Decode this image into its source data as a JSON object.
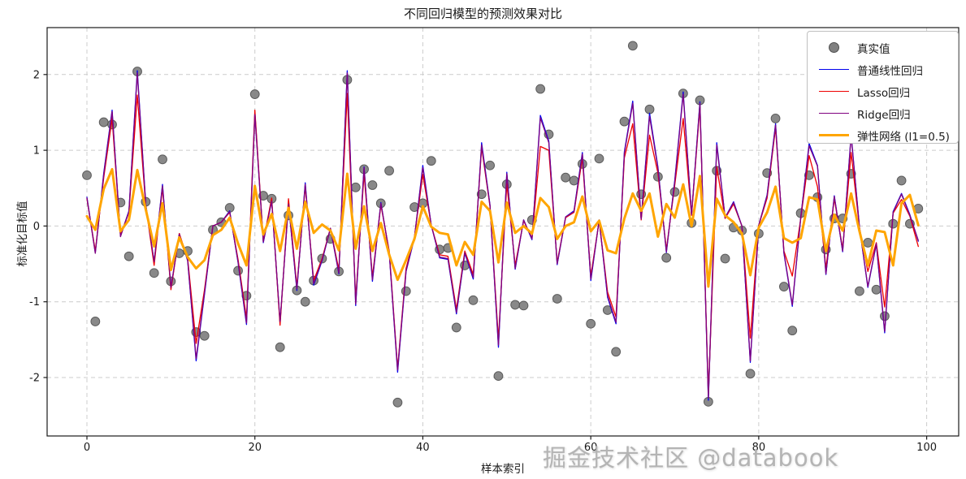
{
  "title": "不同回归模型的预测效果对比",
  "watermark": "掘金技术社区 @databook",
  "x_axis": {
    "label": "样本索引",
    "ticks": [
      0,
      20,
      40,
      60,
      80,
      100
    ]
  },
  "y_axis": {
    "label": "标准化目标值",
    "ticks": [
      -2,
      -1,
      0,
      1,
      2
    ]
  },
  "colors": {
    "true_dots": "#808080",
    "dot_edge": "#4f4f4f",
    "linear": "#0000ee",
    "lasso": "#ee0000",
    "ridge": "#800080",
    "elastic": "#ffa500",
    "grid": "#cccccc",
    "spine": "#1a1a1a",
    "legend_border": "#bfbfbf",
    "watermark_gray": "#b4b4b4"
  },
  "chart_data": {
    "type": "line",
    "title": "不同回归模型的预测效果对比",
    "xlabel": "样本索引",
    "ylabel": "标准化目标值",
    "x_description": "sample index 0..99 (one point per index)",
    "xlim": [
      -5,
      104
    ],
    "ylim": [
      -2.78,
      2.62
    ],
    "x_ticks": [
      0,
      20,
      40,
      60,
      80,
      100
    ],
    "y_ticks": [
      -2,
      -1,
      0,
      1,
      2
    ],
    "grid": true,
    "grid_style": "dashed",
    "legend_position": "upper right",
    "scatter_series": {
      "name": "真实值",
      "marker": "circle",
      "color": "#808080",
      "values": [
        0.67,
        -1.26,
        1.37,
        1.34,
        0.31,
        -0.4,
        2.04,
        0.32,
        -0.62,
        0.88,
        -0.73,
        -0.36,
        -0.33,
        -1.4,
        -1.45,
        -0.05,
        0.05,
        0.24,
        -0.59,
        -0.92,
        1.74,
        0.4,
        0.36,
        -1.6,
        0.14,
        -0.85,
        -1.0,
        -0.72,
        -0.43,
        -0.17,
        -0.6,
        1.93,
        0.51,
        0.75,
        0.54,
        0.3,
        0.73,
        -2.33,
        -0.86,
        0.25,
        0.3,
        0.86,
        -0.31,
        -0.29,
        -1.34,
        -0.52,
        -0.98,
        0.42,
        0.8,
        -1.98,
        0.55,
        -1.04,
        -1.05,
        0.08,
        1.81,
        1.21,
        -0.96,
        0.64,
        0.6,
        0.82,
        -1.29,
        0.89,
        -1.11,
        -1.66,
        1.38,
        2.38,
        0.42,
        1.54,
        0.65,
        -0.42,
        0.45,
        1.75,
        0.04,
        1.66,
        -2.32,
        0.73,
        -0.43,
        -0.02,
        -0.06,
        -1.95,
        -0.1,
        0.7,
        1.42,
        -0.8,
        -1.38,
        0.17,
        0.67,
        0.38,
        -0.31,
        0.1,
        0.1,
        0.69,
        -0.86,
        -0.22,
        -0.84,
        -1.19,
        0.03,
        0.6,
        0.03,
        0.23
      ]
    },
    "series": [
      {
        "name": "普通线性回归",
        "color": "#0000ee",
        "width": 1.3,
        "values": [
          0.38,
          -0.35,
          0.7,
          1.53,
          -0.13,
          0.2,
          2.05,
          0.29,
          -0.48,
          0.55,
          -0.82,
          -0.1,
          -0.46,
          -1.78,
          -0.9,
          0.0,
          0.05,
          0.2,
          -0.48,
          -1.3,
          1.5,
          -0.22,
          0.34,
          -1.28,
          0.3,
          -0.85,
          0.57,
          -0.78,
          -0.46,
          -0.03,
          -0.63,
          2.05,
          -1.05,
          0.78,
          -0.73,
          0.31,
          -0.36,
          -1.93,
          -0.6,
          -0.16,
          0.8,
          0.01,
          -0.42,
          -0.44,
          -1.16,
          -0.36,
          -0.7,
          1.1,
          0.28,
          -1.6,
          0.71,
          -0.57,
          0.08,
          -0.18,
          1.46,
          1.12,
          -0.51,
          0.12,
          0.2,
          0.97,
          -0.72,
          0.08,
          -0.94,
          -1.29,
          0.98,
          1.65,
          0.09,
          1.49,
          0.78,
          -0.35,
          0.6,
          1.77,
          0.15,
          1.64,
          -2.3,
          1.1,
          0.11,
          0.32,
          0.0,
          -1.8,
          0.01,
          0.41,
          1.35,
          -0.36,
          -1.06,
          0.11,
          1.09,
          0.8,
          -0.64,
          0.4,
          -0.34,
          1.21,
          -0.02,
          -0.81,
          -0.24,
          -1.41,
          0.19,
          0.43,
          0.15,
          -0.2
        ]
      },
      {
        "name": "Lasso回归",
        "color": "#ee0000",
        "width": 1.3,
        "values": [
          0.36,
          -0.33,
          0.64,
          1.42,
          -0.12,
          0.18,
          1.73,
          0.27,
          -0.52,
          0.5,
          -0.84,
          -0.1,
          -0.43,
          -1.55,
          -0.84,
          0.0,
          0.05,
          0.18,
          -0.44,
          -1.22,
          1.53,
          -0.2,
          0.37,
          -1.31,
          0.36,
          -0.8,
          0.52,
          -0.72,
          -0.43,
          -0.03,
          -0.58,
          1.75,
          -0.97,
          0.69,
          -0.67,
          0.28,
          -0.33,
          -1.88,
          -0.56,
          -0.14,
          0.68,
          0.01,
          -0.38,
          -0.4,
          -1.1,
          -0.33,
          -0.64,
          1.04,
          0.26,
          -1.5,
          0.56,
          -0.52,
          0.07,
          -0.16,
          1.05,
          1.0,
          -0.48,
          0.11,
          0.18,
          0.9,
          -0.66,
          0.07,
          -0.87,
          -1.2,
          0.9,
          1.35,
          0.08,
          1.2,
          0.7,
          -0.31,
          0.54,
          1.42,
          0.14,
          1.58,
          -2.22,
          0.78,
          0.1,
          0.29,
          0.0,
          -1.48,
          0.01,
          0.37,
          1.3,
          -0.33,
          -0.66,
          0.1,
          0.93,
          0.52,
          -0.56,
          0.36,
          -0.3,
          0.97,
          -0.02,
          -0.6,
          -0.22,
          -1.07,
          0.17,
          0.35,
          0.13,
          -0.27
        ]
      },
      {
        "name": "Ridge回归",
        "color": "#800080",
        "width": 1.3,
        "values": [
          0.37,
          -0.36,
          0.68,
          1.51,
          -0.14,
          0.19,
          2.02,
          0.28,
          -0.47,
          0.53,
          -0.81,
          -0.11,
          -0.45,
          -1.75,
          -0.88,
          0.0,
          0.05,
          0.19,
          -0.47,
          -1.28,
          1.47,
          -0.21,
          0.33,
          -1.26,
          0.29,
          -0.83,
          0.55,
          -0.76,
          -0.45,
          -0.03,
          -0.62,
          2.02,
          -1.03,
          0.77,
          -0.71,
          0.3,
          -0.35,
          -1.9,
          -0.59,
          -0.15,
          0.77,
          0.01,
          -0.41,
          -0.43,
          -1.14,
          -0.35,
          -0.68,
          1.07,
          0.27,
          -1.57,
          0.69,
          -0.56,
          0.08,
          -0.17,
          1.43,
          1.1,
          -0.5,
          0.12,
          0.19,
          0.95,
          -0.7,
          0.08,
          -0.92,
          -1.27,
          0.96,
          1.62,
          0.09,
          1.45,
          0.76,
          -0.34,
          0.58,
          1.74,
          0.15,
          1.62,
          -2.27,
          1.07,
          0.11,
          0.31,
          0.0,
          -1.78,
          0.01,
          0.4,
          1.33,
          -0.35,
          -1.04,
          0.11,
          1.06,
          0.79,
          -0.63,
          0.39,
          -0.33,
          1.19,
          -0.02,
          -0.8,
          -0.23,
          -1.39,
          0.18,
          0.42,
          0.14,
          -0.19
        ]
      },
      {
        "name": "弹性网络 (l1=0.5)",
        "color": "#ffa500",
        "width": 3,
        "values": [
          0.13,
          -0.05,
          0.49,
          0.75,
          -0.07,
          0.08,
          0.74,
          0.22,
          -0.27,
          0.3,
          -0.58,
          -0.15,
          -0.41,
          -0.56,
          -0.45,
          -0.12,
          -0.05,
          0.11,
          -0.23,
          -0.52,
          0.53,
          -0.11,
          0.16,
          -0.33,
          0.24,
          -0.3,
          0.32,
          -0.09,
          0.02,
          -0.06,
          -0.32,
          0.69,
          -0.3,
          0.26,
          -0.33,
          0.04,
          -0.38,
          -0.71,
          -0.45,
          -0.17,
          0.26,
          -0.01,
          -0.09,
          -0.11,
          -0.52,
          -0.21,
          -0.38,
          0.32,
          0.2,
          -0.48,
          0.31,
          -0.09,
          0.0,
          -0.1,
          0.37,
          0.25,
          -0.17,
          0.0,
          0.05,
          0.39,
          -0.07,
          0.07,
          -0.32,
          -0.36,
          0.1,
          0.43,
          0.2,
          0.43,
          -0.14,
          0.29,
          0.11,
          0.55,
          0.0,
          0.66,
          -0.8,
          0.36,
          0.14,
          0.05,
          -0.1,
          -0.65,
          -0.02,
          0.18,
          0.52,
          -0.16,
          -0.22,
          -0.16,
          0.38,
          0.35,
          -0.33,
          0.15,
          -0.06,
          0.43,
          -0.07,
          -0.52,
          -0.06,
          -0.08,
          -0.52,
          0.3,
          0.41,
          0.01
        ]
      }
    ]
  },
  "legend": {
    "entries": [
      {
        "label": "真实值",
        "kind": "dot",
        "color": "#808080"
      },
      {
        "label": "普通线性回归",
        "kind": "line",
        "color": "#0000ee",
        "thick": false
      },
      {
        "label": "Lasso回归",
        "kind": "line",
        "color": "#ee0000",
        "thick": false
      },
      {
        "label": "Ridge回归",
        "kind": "line",
        "color": "#800080",
        "thick": false
      },
      {
        "label": "弹性网络 (l1=0.5)",
        "kind": "line",
        "color": "#ffa500",
        "thick": true
      }
    ]
  }
}
